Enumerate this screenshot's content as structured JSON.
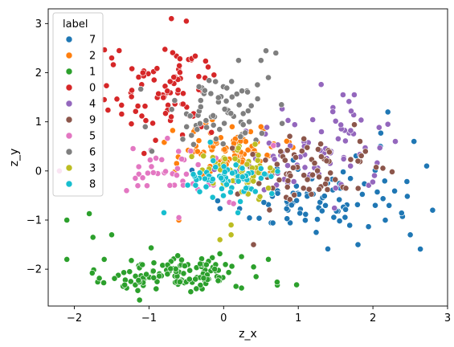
{
  "chart_data": {
    "type": "scatter",
    "title": "",
    "xlabel": "z_x",
    "ylabel": "z_y",
    "xlim": [
      -2.35,
      3.0
    ],
    "ylim": [
      -2.75,
      3.3
    ],
    "x_ticks": [
      -2,
      -1,
      0,
      1,
      2,
      3
    ],
    "y_ticks": [
      -2,
      -1,
      0,
      1,
      2,
      3
    ],
    "x_tick_labels": [
      "−2",
      "−1",
      "0",
      "1",
      "2",
      "3"
    ],
    "y_tick_labels": [
      "−2",
      "−1",
      "0",
      "1",
      "2",
      "3"
    ],
    "grid": false,
    "legend": {
      "title": "label",
      "placement": "upper-left"
    },
    "series": [
      {
        "name": "7",
        "color": "#1f77b4",
        "center": [
          1.3,
          -0.6
        ],
        "spread": [
          0.65,
          0.45
        ],
        "count": 90,
        "seed": 7,
        "points": [
          [
            2.8,
            -0.8
          ],
          [
            2.72,
            0.1
          ],
          [
            2.55,
            0.6
          ],
          [
            2.2,
            1.2
          ],
          [
            1.8,
            -1.5
          ],
          [
            2.5,
            -1.3
          ],
          [
            2.1,
            0.5
          ]
        ]
      },
      {
        "name": "2",
        "color": "#ff7f0e",
        "center": [
          0.05,
          0.45
        ],
        "spread": [
          0.35,
          0.25
        ],
        "count": 90,
        "seed": 2,
        "points": [
          [
            -0.6,
            -1.0
          ],
          [
            0.5,
            0.9
          ],
          [
            -0.4,
            0.8
          ]
        ]
      },
      {
        "name": "1",
        "color": "#2ca02c",
        "center": [
          -0.5,
          -2.1
        ],
        "spread": [
          0.55,
          0.18
        ],
        "count": 130,
        "seed": 1,
        "points": [
          [
            -2.1,
            -1.0
          ],
          [
            -2.1,
            -1.8
          ],
          [
            -1.8,
            -0.87
          ],
          [
            -1.75,
            -1.35
          ],
          [
            -1.5,
            -1.3
          ],
          [
            -1.6,
            -1.8
          ],
          [
            0.6,
            -1.8
          ]
        ]
      },
      {
        "name": "0",
        "color": "#d62728",
        "center": [
          -0.85,
          1.65
        ],
        "spread": [
          0.35,
          0.5
        ],
        "count": 80,
        "seed": 0,
        "points": [
          [
            -0.7,
            3.1
          ],
          [
            -0.5,
            3.05
          ],
          [
            -1.4,
            2.45
          ],
          [
            -1.5,
            2.3
          ],
          [
            -1.6,
            1.45
          ],
          [
            -0.3,
            0.9
          ]
        ]
      },
      {
        "name": "4",
        "color": "#9467bd",
        "center": [
          1.1,
          0.4
        ],
        "spread": [
          0.55,
          0.45
        ],
        "count": 80,
        "seed": 4,
        "points": [
          [
            1.6,
            1.55
          ],
          [
            1.75,
            1.55
          ],
          [
            2.2,
            0.95
          ],
          [
            1.5,
            -0.35
          ],
          [
            1.7,
            0.1
          ],
          [
            2.3,
            0.6
          ]
        ]
      },
      {
        "name": "9",
        "color": "#8c564b",
        "center": [
          1.1,
          0.0
        ],
        "spread": [
          0.45,
          0.35
        ],
        "count": 70,
        "seed": 9,
        "points": [
          [
            1.3,
            0.55
          ],
          [
            1.9,
            0.4
          ],
          [
            0.4,
            -1.5
          ],
          [
            1.8,
            0.2
          ]
        ]
      },
      {
        "name": "5",
        "color": "#e377c2",
        "center": [
          -0.65,
          0.05
        ],
        "spread": [
          0.45,
          0.3
        ],
        "count": 40,
        "seed": 5,
        "points": [
          [
            -2.2,
            0.0
          ],
          [
            -1.3,
            -0.4
          ],
          [
            -1.15,
            -0.3
          ],
          [
            -0.6,
            -0.95
          ]
        ]
      },
      {
        "name": "6",
        "color": "#7f7f7f",
        "center": [
          0.0,
          1.15
        ],
        "spread": [
          0.45,
          0.4
        ],
        "count": 70,
        "seed": 6,
        "points": [
          [
            0.7,
            2.4
          ],
          [
            0.5,
            2.25
          ],
          [
            0.6,
            1.9
          ],
          [
            0.2,
            2.25
          ],
          [
            -1.05,
            0.9
          ]
        ]
      },
      {
        "name": "3",
        "color": "#bcbd22",
        "center": [
          0.15,
          0.05
        ],
        "spread": [
          0.25,
          0.2
        ],
        "count": 50,
        "seed": 3,
        "points": [
          [
            0.6,
            -0.35
          ],
          [
            -0.05,
            -1.4
          ],
          [
            0.1,
            -1.1
          ],
          [
            0.1,
            -1.3
          ]
        ]
      },
      {
        "name": "8",
        "color": "#17becf",
        "center": [
          0.15,
          -0.15
        ],
        "spread": [
          0.3,
          0.25
        ],
        "count": 60,
        "seed": 8,
        "points": [
          [
            -0.8,
            -0.85
          ],
          [
            0.3,
            -0.35
          ],
          [
            0.5,
            0.05
          ]
        ]
      }
    ]
  }
}
